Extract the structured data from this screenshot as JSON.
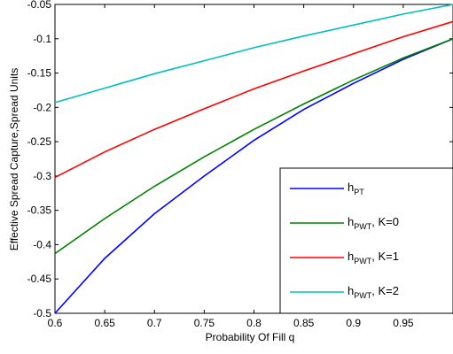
{
  "chart_data": {
    "type": "line",
    "title": "",
    "xlabel": "Probability Of Fill q",
    "ylabel": "Effective Spread Capture,Spread Units",
    "xlim": [
      0.6,
      1.0
    ],
    "ylim": [
      -0.5,
      -0.05
    ],
    "x_ticks": [
      {
        "value": 0.6,
        "label": "0.6"
      },
      {
        "value": 0.65,
        "label": "0.65"
      },
      {
        "value": 0.7,
        "label": "0.7"
      },
      {
        "value": 0.75,
        "label": "0.75"
      },
      {
        "value": 0.8,
        "label": "0.8"
      },
      {
        "value": 0.85,
        "label": "0.85"
      },
      {
        "value": 0.9,
        "label": "0.9"
      },
      {
        "value": 0.95,
        "label": "0.95"
      }
    ],
    "y_ticks": [
      {
        "value": -0.05,
        "label": "-0.05"
      },
      {
        "value": -0.1,
        "label": "-0.1"
      },
      {
        "value": -0.15,
        "label": "-0.15"
      },
      {
        "value": -0.2,
        "label": "-0.2"
      },
      {
        "value": -0.25,
        "label": "-0.25"
      },
      {
        "value": -0.3,
        "label": "-0.3"
      },
      {
        "value": -0.35,
        "label": "-0.35"
      },
      {
        "value": -0.4,
        "label": "-0.4"
      },
      {
        "value": -0.45,
        "label": "-0.45"
      },
      {
        "value": -0.5,
        "label": "-0.5"
      }
    ],
    "grid": false,
    "legend_position": "bottom-right",
    "x": [
      0.6,
      0.65,
      0.7,
      0.75,
      0.8,
      0.85,
      0.9,
      0.95,
      1.0
    ],
    "series": [
      {
        "name": "PT",
        "legend_main": "h",
        "legend_sub": "PT",
        "legend_suffix": "",
        "color": "#0000ff",
        "values": [
          -0.5,
          -0.42,
          -0.355,
          -0.3,
          -0.248,
          -0.203,
          -0.165,
          -0.13,
          -0.1
        ]
      },
      {
        "name": "PWT, K=0",
        "legend_main": "h",
        "legend_sub": "PWT",
        "legend_suffix": ", K=0",
        "color": "#008000",
        "values": [
          -0.413,
          -0.362,
          -0.315,
          -0.272,
          -0.232,
          -0.195,
          -0.16,
          -0.128,
          -0.1
        ]
      },
      {
        "name": "PWT, K=1",
        "legend_main": "h",
        "legend_sub": "PWT",
        "legend_suffix": ", K=1",
        "color": "#ff0000",
        "values": [
          -0.302,
          -0.265,
          -0.232,
          -0.202,
          -0.173,
          -0.147,
          -0.122,
          -0.097,
          -0.075
        ]
      },
      {
        "name": "PWT, K=2",
        "legend_main": "h",
        "legend_sub": "PWT",
        "legend_suffix": ", K=2",
        "color": "#00bfbf",
        "values": [
          -0.193,
          -0.172,
          -0.151,
          -0.132,
          -0.113,
          -0.096,
          -0.08,
          -0.064,
          -0.05
        ]
      }
    ]
  }
}
